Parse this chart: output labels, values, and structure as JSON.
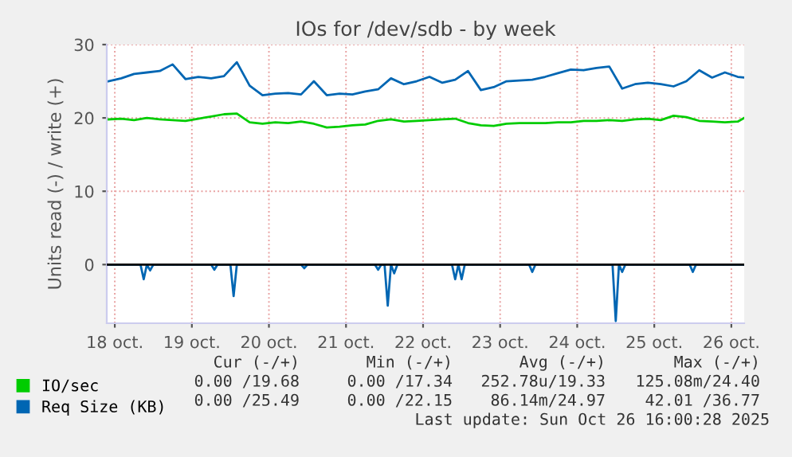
{
  "chart_data": {
    "type": "line",
    "title": "IOs for /dev/sdb - by week",
    "ylabel": "Units read (-) / write (+)",
    "xlim": [
      "2025-10-18T09:30",
      "2025-10-26T16:00"
    ],
    "ylim": [
      -8,
      30
    ],
    "yticks": [
      0,
      10,
      20,
      30
    ],
    "xticks": [
      {
        "value": "2025-10-18T12:00",
        "label": "18 oct."
      },
      {
        "value": "2025-10-19T12:00",
        "label": "19 oct."
      },
      {
        "value": "2025-10-20T12:00",
        "label": "20 oct."
      },
      {
        "value": "2025-10-21T12:00",
        "label": "21 oct."
      },
      {
        "value": "2025-10-22T12:00",
        "label": "22 oct."
      },
      {
        "value": "2025-10-23T12:00",
        "label": "23 oct."
      },
      {
        "value": "2025-10-24T12:00",
        "label": "24 oct."
      },
      {
        "value": "2025-10-25T12:00",
        "label": "25 oct."
      },
      {
        "value": "2025-10-26T12:00",
        "label": "26 oct."
      }
    ],
    "x": [
      "2025-10-18T10:00",
      "2025-10-18T14:00",
      "2025-10-18T18:00",
      "2025-10-18T22:00",
      "2025-10-19T02:00",
      "2025-10-19T06:00",
      "2025-10-19T10:00",
      "2025-10-19T14:00",
      "2025-10-19T18:00",
      "2025-10-19T22:00",
      "2025-10-20T02:00",
      "2025-10-20T06:00",
      "2025-10-20T10:00",
      "2025-10-20T14:00",
      "2025-10-20T18:00",
      "2025-10-20T22:00",
      "2025-10-21T02:00",
      "2025-10-21T06:00",
      "2025-10-21T10:00",
      "2025-10-21T14:00",
      "2025-10-21T18:00",
      "2025-10-21T22:00",
      "2025-10-22T02:00",
      "2025-10-22T06:00",
      "2025-10-22T10:00",
      "2025-10-22T14:00",
      "2025-10-22T18:00",
      "2025-10-22T22:00",
      "2025-10-23T02:00",
      "2025-10-23T06:00",
      "2025-10-23T10:00",
      "2025-10-23T14:00",
      "2025-10-23T18:00",
      "2025-10-23T22:00",
      "2025-10-24T02:00",
      "2025-10-24T06:00",
      "2025-10-24T10:00",
      "2025-10-24T14:00",
      "2025-10-24T18:00",
      "2025-10-24T22:00",
      "2025-10-25T02:00",
      "2025-10-25T06:00",
      "2025-10-25T10:00",
      "2025-10-25T14:00",
      "2025-10-25T18:00",
      "2025-10-25T22:00",
      "2025-10-26T02:00",
      "2025-10-26T06:00",
      "2025-10-26T10:00",
      "2025-10-26T14:00",
      "2025-10-26T16:00"
    ],
    "series": [
      {
        "name": "IO/sec",
        "color": "#00cc00",
        "values": [
          19.8,
          19.9,
          19.7,
          20.0,
          19.8,
          19.7,
          19.6,
          19.9,
          20.2,
          20.5,
          20.6,
          19.4,
          19.2,
          19.4,
          19.3,
          19.5,
          19.2,
          18.7,
          18.8,
          19.0,
          19.1,
          19.6,
          19.8,
          19.5,
          19.6,
          19.7,
          19.8,
          19.9,
          19.3,
          19.0,
          18.9,
          19.2,
          19.3,
          19.3,
          19.3,
          19.4,
          19.4,
          19.6,
          19.6,
          19.7,
          19.6,
          19.8,
          19.9,
          19.7,
          20.3,
          20.1,
          19.6,
          19.5,
          19.4,
          19.5,
          20.0
        ]
      },
      {
        "name": "Req Size (KB)",
        "color": "#0066b3",
        "values": [
          25.0,
          25.4,
          26.0,
          26.2,
          26.4,
          27.3,
          25.3,
          25.6,
          25.4,
          25.7,
          27.6,
          24.4,
          23.1,
          23.3,
          23.4,
          23.2,
          25.0,
          23.1,
          23.3,
          23.2,
          23.6,
          23.9,
          25.4,
          24.6,
          25.0,
          25.6,
          24.8,
          25.2,
          26.4,
          23.8,
          24.2,
          25.0,
          25.1,
          25.2,
          25.6,
          26.1,
          26.6,
          26.5,
          26.8,
          27.0,
          24.0,
          24.6,
          24.8,
          24.6,
          24.3,
          25.0,
          26.5,
          25.5,
          26.2,
          25.6,
          25.5
        ]
      },
      {
        "color": "#0066b3",
        "x": [
          "2025-10-18T10:00",
          "2025-10-18T20:00",
          "2025-10-18T21:00",
          "2025-10-18T22:00",
          "2025-10-18T23:00",
          "2025-10-19T00:00",
          "2025-10-19T18:00",
          "2025-10-19T19:00",
          "2025-10-19T20:00",
          "2025-10-20T00:00",
          "2025-10-20T01:00",
          "2025-10-20T02:00",
          "2025-10-20T22:00",
          "2025-10-20T23:00",
          "2025-10-21T00:00",
          "2025-10-21T21:00",
          "2025-10-21T22:00",
          "2025-10-21T23:00",
          "2025-10-22T00:00",
          "2025-10-22T01:00",
          "2025-10-22T02:00",
          "2025-10-22T03:00",
          "2025-10-22T04:00",
          "2025-10-22T21:00",
          "2025-10-22T22:00",
          "2025-10-22T23:00",
          "2025-10-23T00:00",
          "2025-10-23T01:00",
          "2025-10-23T21:00",
          "2025-10-23T22:00",
          "2025-10-23T23:00",
          "2025-10-24T23:00",
          "2025-10-25T00:00",
          "2025-10-25T01:00",
          "2025-10-25T02:00",
          "2025-10-25T03:00",
          "2025-10-25T23:00",
          "2025-10-26T00:00",
          "2025-10-26T01:00",
          "2025-10-26T16:00"
        ],
        "values": [
          0,
          0,
          -2.0,
          0,
          -0.8,
          0,
          0,
          -0.7,
          0,
          0,
          -4.3,
          0,
          0,
          -0.5,
          0,
          0,
          -0.7,
          0,
          0,
          -5.6,
          0,
          -1.2,
          0,
          0,
          -2.0,
          0,
          -2.0,
          0,
          0,
          -1.0,
          0,
          0,
          -7.7,
          0,
          -1.0,
          0,
          0,
          -1.0,
          0,
          0
        ]
      }
    ],
    "ref_lines": [
      {
        "axis": "y",
        "value": 0,
        "color": "#000000"
      }
    ],
    "grid": true,
    "legend": "bottom",
    "annotations": [
      "Cur (-/+)",
      "Min (-/+)",
      "Avg (-/+)",
      "Max (-/+)",
      "0.00 /19.68",
      "0.00 /17.34",
      "252.78u/19.33",
      "125.08m/24.40",
      "0.00 /25.49",
      "0.00 /22.15",
      "86.14m/24.97",
      "42.01 /36.77",
      "Last update: Sun Oct 26 16:00:28 2025"
    ]
  }
}
